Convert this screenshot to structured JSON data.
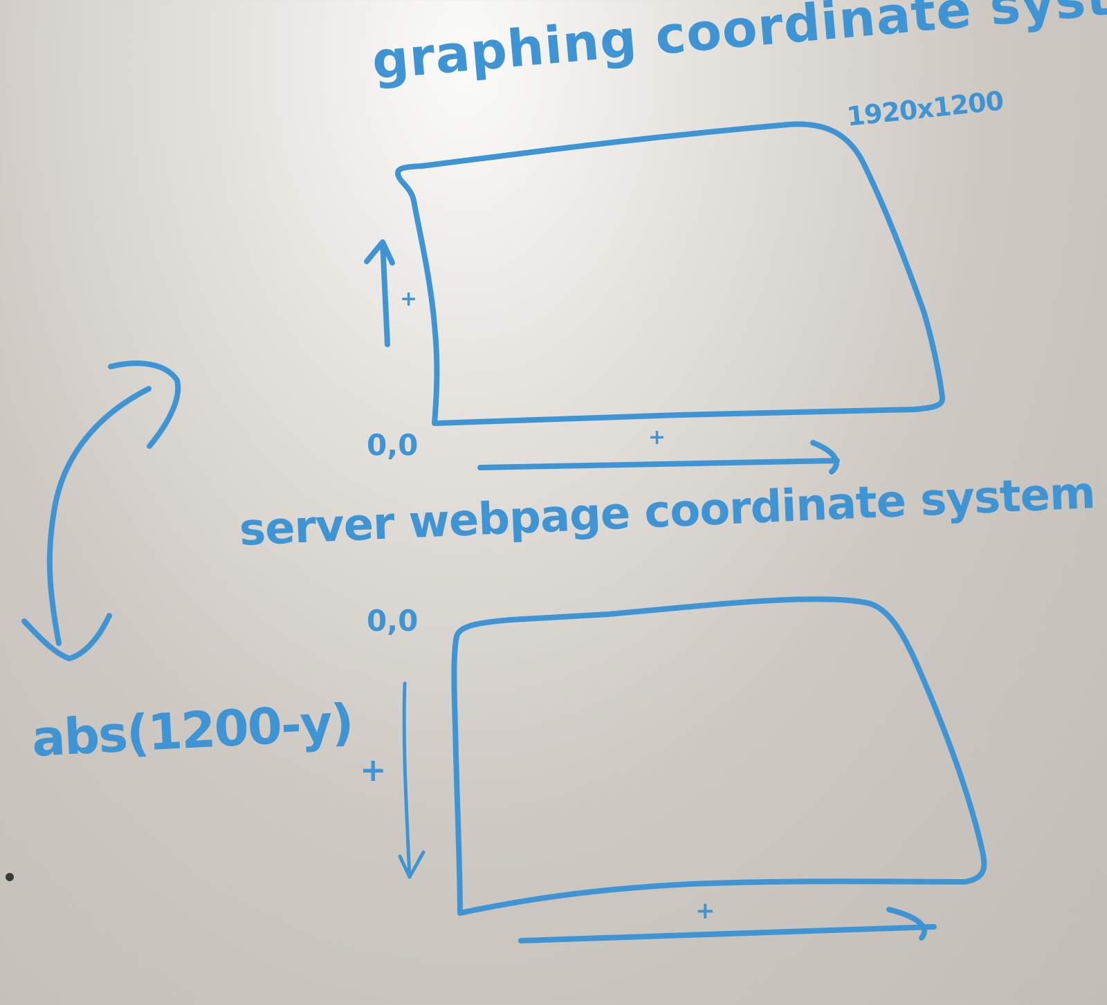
{
  "top_system": {
    "title": "graphing coordinate system",
    "resolution": "1920x1200",
    "origin": "0,0",
    "y_sign": "+",
    "x_sign": "+"
  },
  "bottom_system": {
    "title": "server webpage coordinate system",
    "origin": "0,0",
    "y_sign": "+",
    "x_sign": "+"
  },
  "formula": "abs(1200-y)",
  "colors": {
    "marker": "#3f95d3",
    "board": "#d6d2cd"
  }
}
